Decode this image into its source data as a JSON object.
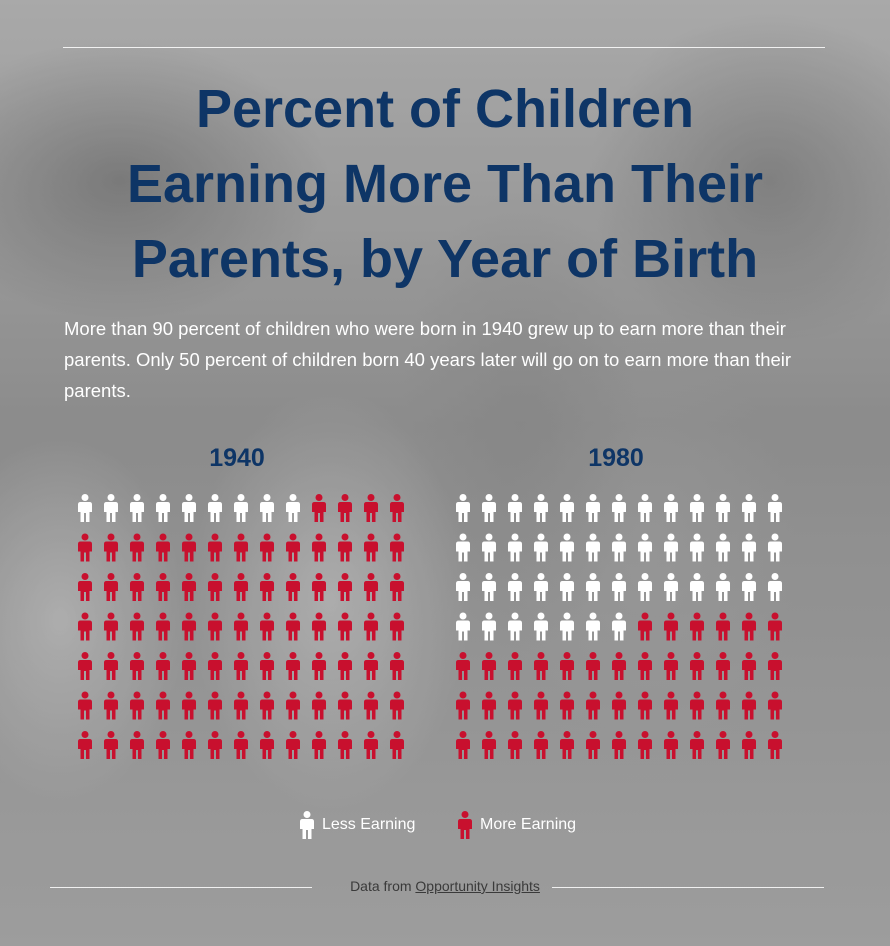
{
  "title_lines": [
    "Percent of Children",
    "Earning More Than Their",
    "Parents, by Year of Birth"
  ],
  "description": "More than 90 percent of children who were born in 1940 grew up to earn more than their parents. Only 50 percent of children born 40 years later will go on to earn more than their parents.",
  "colors": {
    "title": "#0e3566",
    "less": "#ffffff",
    "more": "#c8102e"
  },
  "legend": {
    "less_label": "Less Earning",
    "more_label": "More Earning"
  },
  "source": {
    "prefix": "Data from ",
    "link_text": "Opportunity Insights"
  },
  "chart_data": [
    {
      "type": "pictogram",
      "title": "1940",
      "rows": 7,
      "cols": 13,
      "total": 91,
      "less_earning_count": 9,
      "more_earning_count": 82,
      "series": [
        {
          "name": "Less Earning",
          "value": 9
        },
        {
          "name": "More Earning",
          "value": 82
        }
      ]
    },
    {
      "type": "pictogram",
      "title": "1980",
      "rows": 7,
      "cols": 13,
      "total": 91,
      "less_earning_count": 46,
      "more_earning_count": 45,
      "series": [
        {
          "name": "Less Earning",
          "value": 46
        },
        {
          "name": "More Earning",
          "value": 45
        }
      ]
    }
  ]
}
